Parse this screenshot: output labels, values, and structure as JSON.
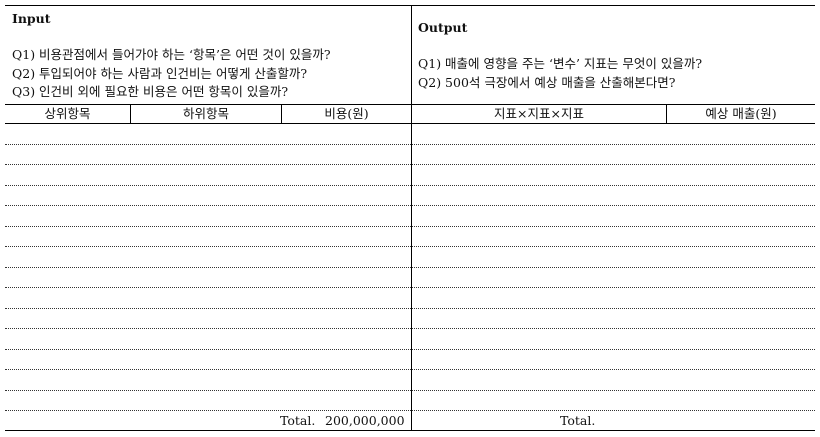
{
  "input": {
    "title": "Input",
    "questions": [
      "Q1) 비용관점에서 들어가야 하는 ‘항목’은 어떤 것이 있을까?",
      "Q2) 투입되어야 하는 사람과 인건비는 어떻게 산출할까?",
      "Q3) 인건비 외에 필요한 비용은 어떤 항목이 있을까?"
    ],
    "columns": [
      "상위항목",
      "하위항목",
      "비용(원)"
    ],
    "total_label": "Total.",
    "total_value": "200,000,000"
  },
  "output": {
    "title": "Output",
    "questions": [
      "Q1) 매출에 영향을 주는 ‘변수’ 지표는 무엇이 있을까?",
      "Q2) 500석 극장에서 예상 매출을 산출해본다면?"
    ],
    "columns": [
      "지표×지표×지표",
      "예상 매출(원)"
    ],
    "total_label": "Total."
  }
}
